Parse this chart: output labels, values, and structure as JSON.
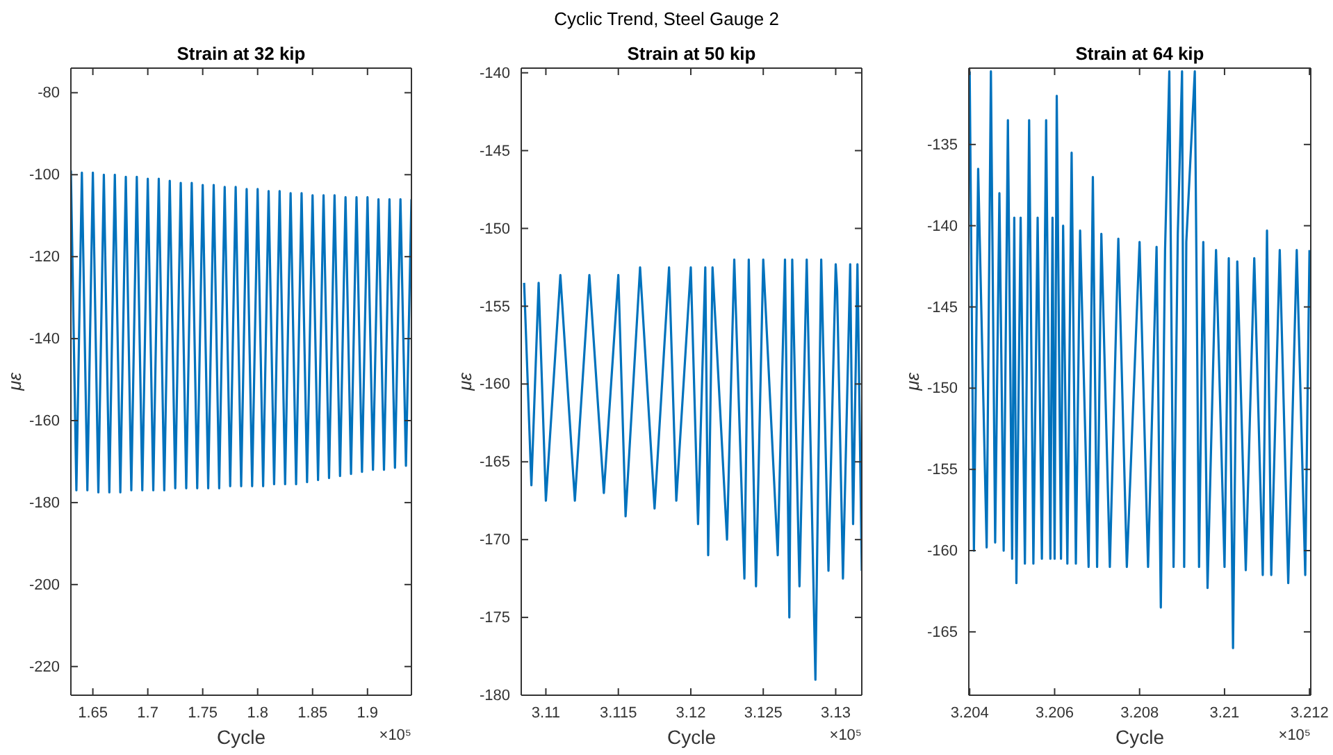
{
  "chart_data": [
    {
      "type": "line",
      "title": "Strain at 32 kip",
      "xlabel": "Cycle",
      "ylabel": "με",
      "annotations": [
        "Cyclic Trend, Steel Gauge 2",
        "×10⁵"
      ],
      "grid": false,
      "line_style": "solid",
      "xlim": [
        1.63,
        1.94
      ],
      "ylim": [
        -227,
        -74
      ],
      "xticks": [
        1.65,
        1.7,
        1.75,
        1.8,
        1.85,
        1.9
      ],
      "yticks": [
        -220,
        -200,
        -180,
        -160,
        -140,
        -120,
        -100,
        -80
      ],
      "series": [
        {
          "color": "#0072bd",
          "x": [
            1.63,
            1.635,
            1.64,
            1.645,
            1.65,
            1.655,
            1.66,
            1.665,
            1.67,
            1.675,
            1.68,
            1.685,
            1.69,
            1.695,
            1.7,
            1.705,
            1.71,
            1.715,
            1.72,
            1.725,
            1.73,
            1.735,
            1.74,
            1.745,
            1.75,
            1.755,
            1.76,
            1.765,
            1.77,
            1.775,
            1.78,
            1.785,
            1.79,
            1.795,
            1.8,
            1.805,
            1.81,
            1.815,
            1.82,
            1.825,
            1.83,
            1.835,
            1.84,
            1.845,
            1.85,
            1.855,
            1.86,
            1.865,
            1.87,
            1.875,
            1.88,
            1.885,
            1.89,
            1.895,
            1.9,
            1.905,
            1.91,
            1.915,
            1.92,
            1.925,
            1.93,
            1.935,
            1.94
          ],
          "values": [
            -99,
            -177,
            -99.5,
            -177,
            -99.5,
            -177.5,
            -100,
            -177.5,
            -100,
            -177.5,
            -100.5,
            -177,
            -100.5,
            -177,
            -101,
            -177,
            -101,
            -177,
            -101.5,
            -176.5,
            -102,
            -176.5,
            -102,
            -176.5,
            -102.5,
            -176.5,
            -102.5,
            -176.5,
            -103,
            -176,
            -103,
            -176,
            -103.5,
            -176,
            -103.5,
            -176,
            -104,
            -175.5,
            -104,
            -175.5,
            -104.5,
            -175.5,
            -104.5,
            -175,
            -105,
            -174.5,
            -105,
            -174,
            -105,
            -173.5,
            -105.5,
            -173,
            -105.5,
            -172.5,
            -105.5,
            -172,
            -106,
            -172,
            -106,
            -171.5,
            -106,
            -171,
            -106
          ]
        }
      ]
    },
    {
      "type": "line",
      "title": "Strain at 50 kip",
      "xlabel": "Cycle",
      "ylabel": "με",
      "annotations": [
        "×10⁵"
      ],
      "grid": false,
      "line_style": "solid",
      "xlim": [
        3.1083,
        3.1318
      ],
      "ylim": [
        -180,
        -139.7
      ],
      "xticks": [
        3.11,
        3.115,
        3.12,
        3.125,
        3.13
      ],
      "yticks": [
        -180,
        -175,
        -170,
        -165,
        -160,
        -155,
        -150,
        -145,
        -140
      ],
      "series": [
        {
          "color": "#0072bd",
          "x": [
            3.1085,
            3.109,
            3.1095,
            3.11,
            3.111,
            3.112,
            3.113,
            3.114,
            3.115,
            3.1155,
            3.1165,
            3.1175,
            3.1185,
            3.119,
            3.12,
            3.1205,
            3.121,
            3.1212,
            3.1215,
            3.1225,
            3.123,
            3.1237,
            3.124,
            3.1245,
            3.125,
            3.126,
            3.1265,
            3.1268,
            3.127,
            3.1275,
            3.128,
            3.1286,
            3.129,
            3.1295,
            3.13,
            3.1301,
            3.1305,
            3.131,
            3.1312,
            3.1315,
            3.1318
          ],
          "values": [
            -153.5,
            -166.5,
            -153.5,
            -167.5,
            -153,
            -167.5,
            -153,
            -167,
            -153,
            -168.5,
            -152.5,
            -168,
            -152.5,
            -167.5,
            -152.5,
            -169,
            -152.5,
            -171,
            -152.5,
            -170,
            -152,
            -172.5,
            -152,
            -173,
            -152,
            -171,
            -152,
            -175,
            -152,
            -173,
            -152,
            -179,
            -152,
            -172,
            -152.3,
            -154,
            -172.5,
            -152.3,
            -169,
            -152.3,
            -172
          ]
        }
      ]
    },
    {
      "type": "line",
      "title": "Strain at 64 kip",
      "xlabel": "Cycle",
      "ylabel": "με",
      "annotations": [
        "×10⁵"
      ],
      "grid": false,
      "line_style": "solid",
      "xlim": [
        3.20398,
        3.21203
      ],
      "ylim": [
        -168.9,
        -130.3
      ],
      "xticks": [
        3.204,
        3.206,
        3.208,
        3.21,
        3.212
      ],
      "yticks": [
        -165,
        -160,
        -155,
        -150,
        -145,
        -140,
        -135
      ],
      "series": [
        {
          "color": "#0072bd",
          "x": [
            3.204,
            3.2041,
            3.2042,
            3.2044,
            3.2045,
            3.2046,
            3.2047,
            3.2048,
            3.2049,
            3.205,
            3.20505,
            3.2051,
            3.2052,
            3.2053,
            3.2054,
            3.2055,
            3.2056,
            3.2057,
            3.2058,
            3.2059,
            3.20595,
            3.206,
            3.20605,
            3.20615,
            3.2062,
            3.2063,
            3.2064,
            3.2065,
            3.2066,
            3.2068,
            3.2069,
            3.207,
            3.2071,
            3.2073,
            3.2075,
            3.2077,
            3.208,
            3.2082,
            3.2084,
            3.2085,
            3.2086,
            3.2087,
            3.2088,
            3.2089,
            3.209,
            3.20905,
            3.2091,
            3.2093,
            3.2094,
            3.2095,
            3.2096,
            3.2098,
            3.21,
            3.2101,
            3.2102,
            3.2103,
            3.2105,
            3.2107,
            3.2109,
            3.211,
            3.2111,
            3.2113,
            3.2115,
            3.2117,
            3.2119,
            3.212
          ],
          "values": [
            -130.5,
            -160,
            -136.5,
            -159.8,
            -130.5,
            -159.5,
            -138,
            -160,
            -133.5,
            -160.5,
            -139.5,
            -162,
            -139.5,
            -160.8,
            -133.5,
            -160.8,
            -139.5,
            -160.5,
            -133.5,
            -160.5,
            -139.5,
            -160.5,
            -132,
            -160.5,
            -140,
            -160.8,
            -135.5,
            -160.8,
            -140.3,
            -161,
            -137,
            -161,
            -140.5,
            -161,
            -140.8,
            -161,
            -141,
            -161,
            -141.3,
            -163.5,
            -141.5,
            -130.5,
            -161,
            -140.5,
            -130.5,
            -161,
            -141,
            -130.5,
            -161,
            -141,
            -162.3,
            -141.5,
            -161,
            -142,
            -166,
            -142.2,
            -161.2,
            -142,
            -161.5,
            -140.3,
            -161.5,
            -141.5,
            -162,
            -141.5,
            -161.5,
            -141.5
          ]
        }
      ]
    }
  ]
}
